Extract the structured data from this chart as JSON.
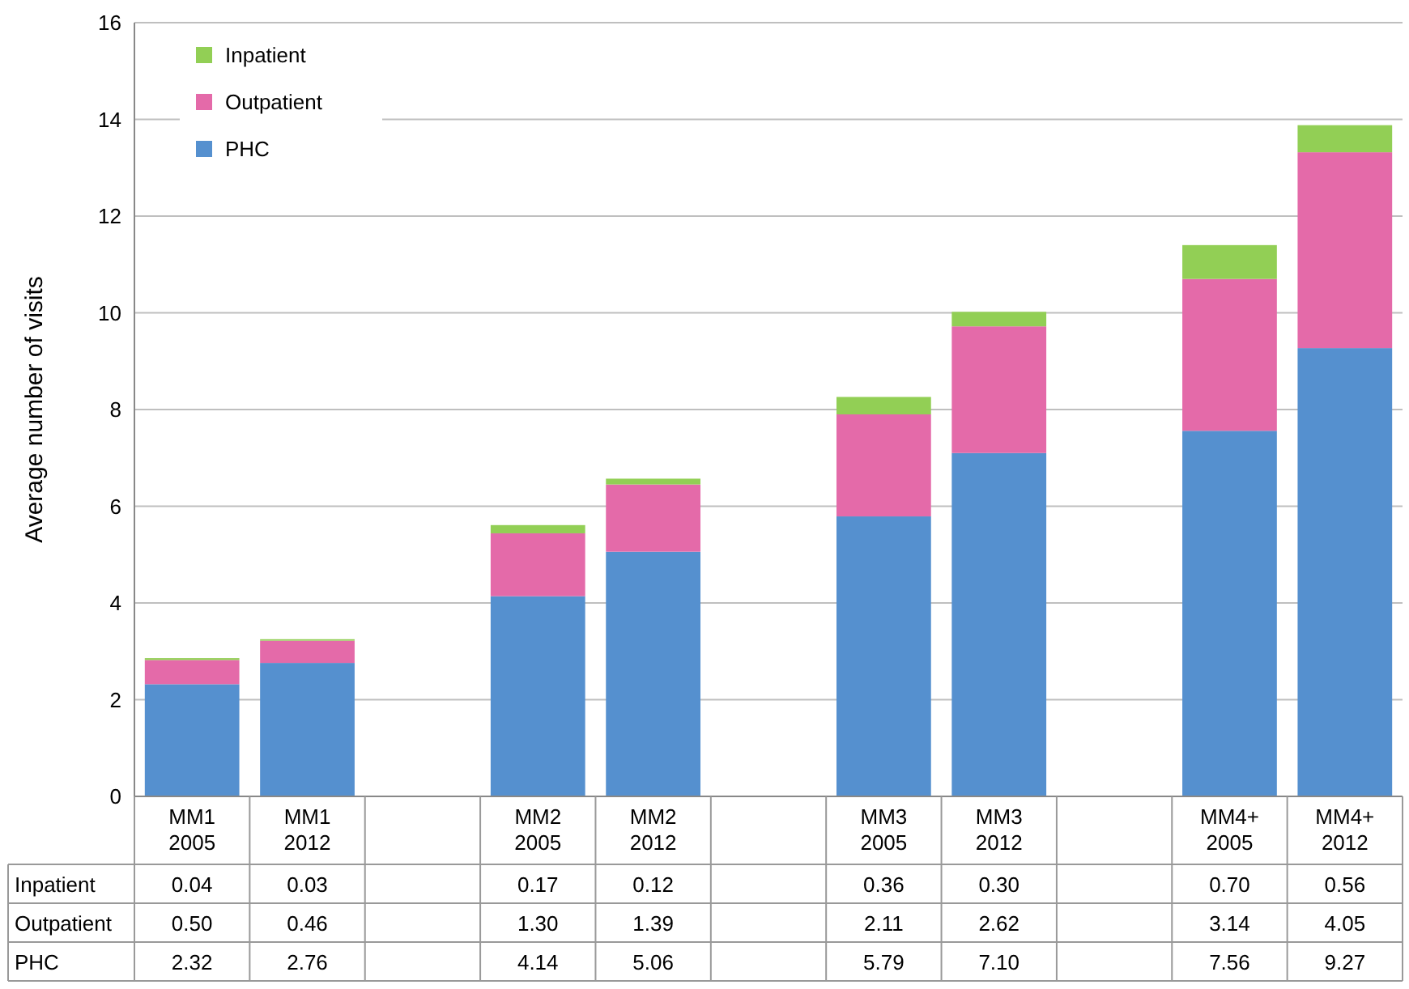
{
  "chart_data": {
    "type": "bar",
    "stacked": true,
    "ylabel": "Average number of visits",
    "categories": [
      "MM1\n2005",
      "MM1\n2012",
      null,
      "MM2\n2005",
      "MM2\n2012",
      null,
      "MM3\n2005",
      "MM3\n2012",
      null,
      "MM4+\n2005",
      "MM4+\n2012"
    ],
    "series": [
      {
        "name": "PHC",
        "color": "#5590cf",
        "values": [
          2.32,
          2.76,
          null,
          4.14,
          5.06,
          null,
          5.79,
          7.1,
          null,
          7.56,
          9.27
        ],
        "value_labels": [
          "2.32",
          "2.76",
          null,
          "4.14",
          "5.06",
          null,
          "5.79",
          "7.10",
          null,
          "7.56",
          "9.27"
        ]
      },
      {
        "name": "Outpatient",
        "color": "#e46aa9",
        "values": [
          0.5,
          0.46,
          null,
          1.3,
          1.39,
          null,
          2.11,
          2.62,
          null,
          3.14,
          4.05
        ],
        "value_labels": [
          "0.50",
          "0.46",
          null,
          "1.30",
          "1.39",
          null,
          "2.11",
          "2.62",
          null,
          "3.14",
          "4.05"
        ]
      },
      {
        "name": "Inpatient",
        "color": "#92cf55",
        "values": [
          0.04,
          0.03,
          null,
          0.17,
          0.12,
          null,
          0.36,
          0.3,
          null,
          0.7,
          0.56
        ],
        "value_labels": [
          "0.04",
          "0.03",
          null,
          "0.17",
          "0.12",
          null,
          "0.36",
          "0.30",
          null,
          "0.70",
          "0.56"
        ]
      }
    ],
    "ylim": [
      0,
      16
    ],
    "yticks": [
      0,
      2,
      4,
      6,
      8,
      10,
      12,
      14,
      16
    ],
    "grid": "y",
    "legend": "top left"
  }
}
